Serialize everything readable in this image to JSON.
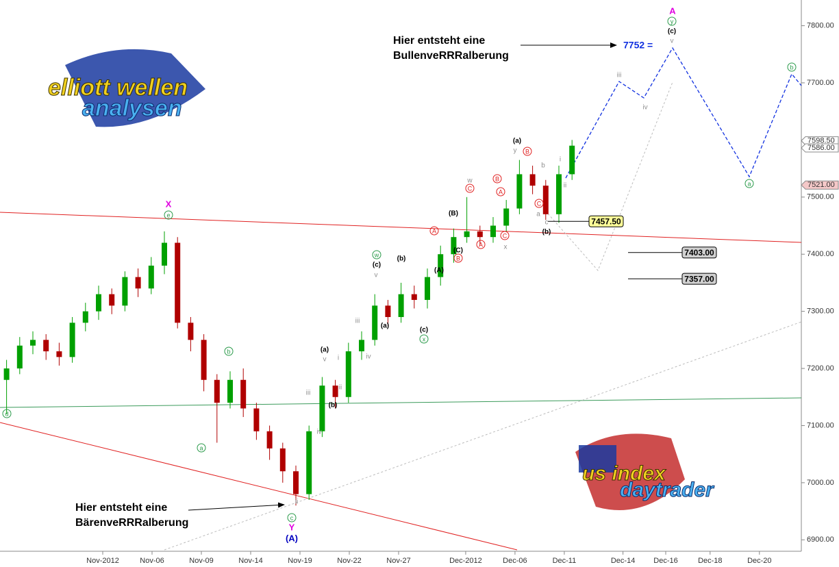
{
  "chart_data": {
    "type": "candlestick",
    "xlim": [
      0,
      48.75
    ],
    "xticks": [
      {
        "value": 6.25,
        "label": "Nov-2012"
      },
      {
        "value": 9.25,
        "label": "Nov-06"
      },
      {
        "value": 12.25,
        "label": "Nov-09"
      },
      {
        "value": 15.25,
        "label": "Nov-14"
      },
      {
        "value": 18.25,
        "label": "Nov-19"
      },
      {
        "value": 21.25,
        "label": "Nov-22"
      },
      {
        "value": 24.25,
        "label": "Nov-27"
      },
      {
        "value": 28.33,
        "label": "Dec-2012"
      },
      {
        "value": 31.33,
        "label": "Dec-06"
      },
      {
        "value": 34.33,
        "label": "Dec-11"
      },
      {
        "value": 37.9,
        "label": "Dec-14"
      },
      {
        "value": 40.5,
        "label": "Dec-16"
      },
      {
        "value": 43.2,
        "label": "Dec-18"
      },
      {
        "value": 46.2,
        "label": "Dec-20"
      }
    ],
    "ylim": [
      6880,
      7845
    ],
    "yticks": [
      {
        "value": 6900,
        "label": "6900.00"
      },
      {
        "value": 7000,
        "label": "7000.00"
      },
      {
        "value": 7100,
        "label": "7100.00"
      },
      {
        "value": 7200,
        "label": "7200.00"
      },
      {
        "value": 7300,
        "label": "7300.00"
      },
      {
        "value": 7400,
        "label": "7400.00"
      },
      {
        "value": 7500,
        "label": "7500.00"
      },
      {
        "value": 7600,
        "label": "7600.00"
      },
      {
        "value": 7700,
        "label": "7700.00"
      },
      {
        "value": 7800,
        "label": "7800.00"
      }
    ],
    "up_color": "#00a000",
    "down_color": "#b00000",
    "x": [
      0.4,
      1.2,
      2.0,
      2.8,
      3.6,
      4.4,
      5.2,
      6.0,
      6.8,
      7.6,
      8.4,
      9.2,
      10.0,
      10.8,
      11.6,
      12.4,
      13.2,
      14.0,
      14.8,
      15.6,
      16.4,
      17.2,
      18.0,
      18.8,
      19.6,
      20.4,
      21.2,
      22.0,
      22.8,
      23.6,
      24.4,
      25.2,
      26.0,
      26.8,
      27.6,
      28.4,
      29.2,
      30.0,
      30.8,
      31.6,
      32.4,
      33.2,
      34.0,
      34.8
    ],
    "open": [
      7180,
      7200,
      7240,
      7250,
      7230,
      7220,
      7280,
      7300,
      7330,
      7310,
      7360,
      7340,
      7380,
      7420,
      7280,
      7250,
      7180,
      7140,
      7180,
      7130,
      7090,
      7060,
      7020,
      6980,
      7090,
      7170,
      7150,
      7230,
      7250,
      7310,
      7290,
      7330,
      7320,
      7360,
      7400,
      7430,
      7440,
      7430,
      7450,
      7480,
      7540,
      7520,
      7470,
      7540
    ],
    "high": [
      7215,
      7255,
      7265,
      7260,
      7245,
      7290,
      7315,
      7345,
      7340,
      7370,
      7375,
      7395,
      7440,
      7430,
      7290,
      7260,
      7190,
      7195,
      7200,
      7140,
      7100,
      7070,
      7030,
      7100,
      7185,
      7180,
      7245,
      7265,
      7330,
      7320,
      7350,
      7345,
      7375,
      7415,
      7445,
      7500,
      7450,
      7465,
      7495,
      7565,
      7555,
      7530,
      7555,
      7600
    ],
    "low": [
      7120,
      7190,
      7225,
      7215,
      7205,
      7210,
      7265,
      7285,
      7295,
      7300,
      7325,
      7330,
      7365,
      7270,
      7230,
      7160,
      7070,
      7130,
      7115,
      7075,
      7040,
      7000,
      6960,
      6970,
      7080,
      7130,
      7140,
      7215,
      7240,
      7275,
      7280,
      7305,
      7305,
      7345,
      7385,
      7420,
      7415,
      7420,
      7440,
      7470,
      7505,
      7460,
      7455,
      7530
    ],
    "close": [
      7200,
      7240,
      7250,
      7230,
      7220,
      7280,
      7300,
      7330,
      7310,
      7360,
      7340,
      7380,
      7420,
      7280,
      7250,
      7180,
      7140,
      7180,
      7130,
      7090,
      7060,
      7020,
      6980,
      7090,
      7170,
      7150,
      7230,
      7250,
      7310,
      7290,
      7330,
      7320,
      7360,
      7400,
      7430,
      7440,
      7430,
      7450,
      7480,
      7540,
      7520,
      7470,
      7540,
      7590
    ],
    "axis_levels": [
      {
        "value": 7598.5,
        "label": "7598.50",
        "color": "#ffffff"
      },
      {
        "value": 7586,
        "label": "7586.00",
        "color": "#ffffff"
      },
      {
        "value": 7521,
        "label": "7521.00",
        "color": "#f4c8c8"
      }
    ],
    "level_boxes": [
      {
        "value": 7457.5,
        "label": "7457.50",
        "color": "#ffff99"
      },
      {
        "value": 7403,
        "label": "7403.00",
        "color": "#d0d0d0"
      },
      {
        "value": 7357,
        "label": "7357.00",
        "color": "#d0d0d0"
      }
    ],
    "notes": {
      "bull_line1": "Hier entsteht eine",
      "bull_line2": "BullenveRRRalberung",
      "target": "7752 =",
      "bear_line1": "Hier entsteht eine",
      "bear_line2": "BärenveRRRalberung"
    },
    "logos": {
      "top1": "elliott wellen",
      "top2": "analysen",
      "bottom1": "us index",
      "bottom2": "daytrader"
    },
    "annotations": [
      {
        "text": "A",
        "color": "#e000e0"
      },
      {
        "text": "y",
        "color": "#2a9a4a",
        "circled": true
      },
      {
        "text": "(c)",
        "color": "#000000"
      },
      {
        "text": "v",
        "color": "#909090"
      },
      {
        "text": "iii",
        "color": "#909090"
      },
      {
        "text": "iv",
        "color": "#909090"
      },
      {
        "text": "b",
        "color": "#2a9a4a",
        "circled": true
      },
      {
        "text": "a",
        "color": "#2a9a4a",
        "circled": true
      },
      {
        "text": "(a)",
        "color": "#000000"
      },
      {
        "text": "y",
        "color": "#909090"
      },
      {
        "text": "B",
        "color": "#e02020",
        "circled": true
      },
      {
        "text": "b",
        "color": "#909090"
      },
      {
        "text": "i",
        "color": "#909090"
      },
      {
        "text": "ii",
        "color": "#909090"
      },
      {
        "text": "w",
        "color": "#909090"
      },
      {
        "text": "C",
        "color": "#e02020",
        "circled": true
      },
      {
        "text": "B",
        "color": "#e02020",
        "circled": true
      },
      {
        "text": "A",
        "color": "#e02020",
        "circled": true
      },
      {
        "text": "C",
        "color": "#e02020",
        "circled": true
      },
      {
        "text": "a",
        "color": "#909090"
      },
      {
        "text": "c",
        "color": "#909090"
      },
      {
        "text": "(b)",
        "color": "#000000"
      },
      {
        "text": "x",
        "color": "#909090"
      },
      {
        "text": "C",
        "color": "#e02020",
        "circled": true
      },
      {
        "text": "A",
        "color": "#e02020",
        "circled": true
      },
      {
        "text": "A",
        "color": "#e02020",
        "circled": true
      },
      {
        "text": "B",
        "color": "#e02020",
        "circled": true
      },
      {
        "text": "(B)",
        "color": "#000000"
      },
      {
        "text": "(C)",
        "color": "#000000"
      },
      {
        "text": "(A)",
        "color": "#000000"
      },
      {
        "text": "X",
        "color": "#e000e0"
      },
      {
        "text": "e",
        "color": "#2a9a4a",
        "circled": true
      },
      {
        "text": "w",
        "color": "#2a9a4a",
        "circled": true
      },
      {
        "text": "(c)",
        "color": "#000000"
      },
      {
        "text": "v",
        "color": "#909090"
      },
      {
        "text": "(b)",
        "color": "#000000"
      },
      {
        "text": "(a)",
        "color": "#000000"
      },
      {
        "text": "iii",
        "color": "#909090"
      },
      {
        "text": "iv",
        "color": "#909090"
      },
      {
        "text": "(c)",
        "color": "#000000"
      },
      {
        "text": "x",
        "color": "#2a9a4a",
        "circled": true
      },
      {
        "text": "(a)",
        "color": "#000000"
      },
      {
        "text": "v",
        "color": "#909090"
      },
      {
        "text": "i",
        "color": "#909090"
      },
      {
        "text": "ii",
        "color": "#909090"
      },
      {
        "text": "iii",
        "color": "#909090"
      },
      {
        "text": "(b)",
        "color": "#000000"
      },
      {
        "text": "iv",
        "color": "#909090"
      },
      {
        "text": "b",
        "color": "#2a9a4a",
        "circled": true
      },
      {
        "text": "d",
        "color": "#2a9a4a",
        "circled": true
      },
      {
        "text": "a",
        "color": "#2a9a4a",
        "circled": true
      },
      {
        "text": "ii",
        "color": "#909090"
      },
      {
        "text": "c",
        "color": "#2a9a4a",
        "circled": true
      },
      {
        "text": "Y",
        "color": "#e000e0"
      },
      {
        "text": "(A)",
        "color": "#0000c0"
      }
    ]
  }
}
